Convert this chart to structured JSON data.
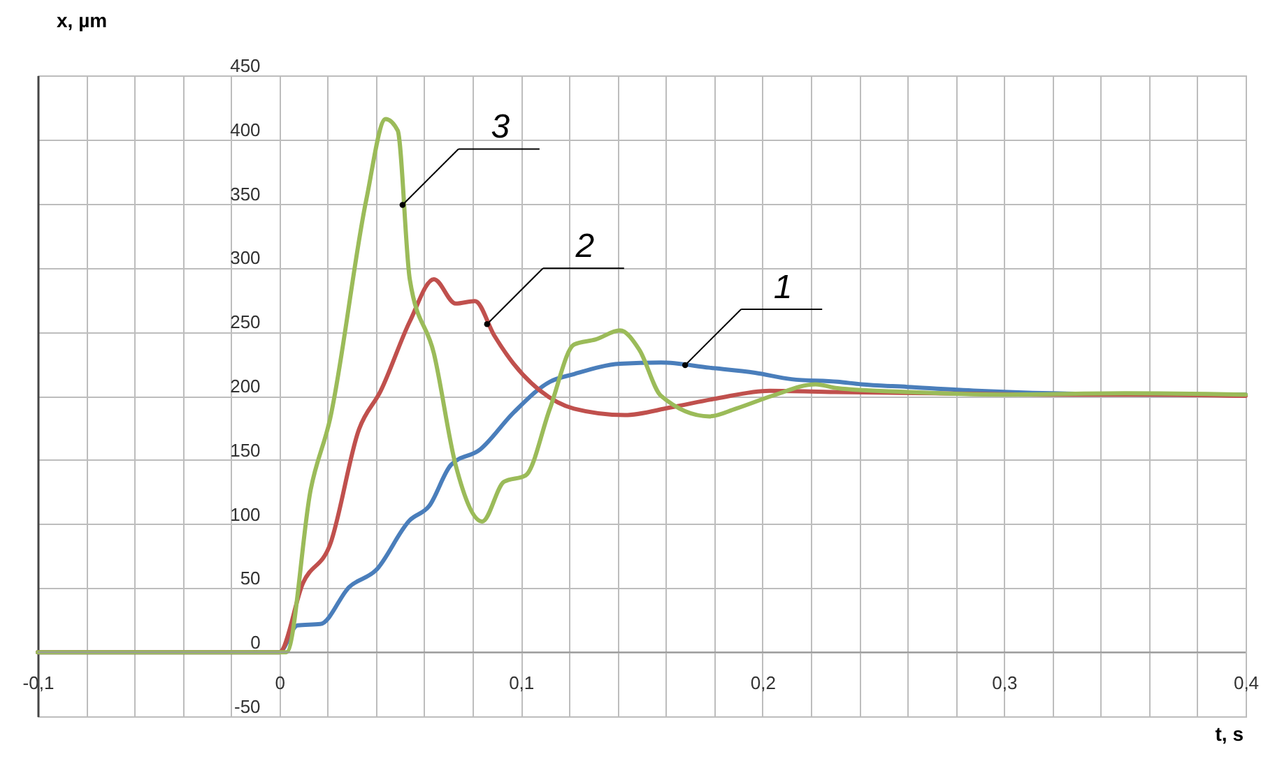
{
  "chart_data": {
    "type": "line",
    "xlabel": "t, s",
    "ylabel": "x, µm",
    "xlim": [
      -0.1,
      0.4
    ],
    "ylim": [
      -50,
      450
    ],
    "xticks": [
      {
        "value": -0.1,
        "label": "-0,1"
      },
      {
        "value": -0.08,
        "label": null
      },
      {
        "value": -0.06,
        "label": null
      },
      {
        "value": -0.04,
        "label": null
      },
      {
        "value": -0.02,
        "label": null
      },
      {
        "value": 0,
        "label": "0"
      },
      {
        "value": 0.02,
        "label": null
      },
      {
        "value": 0.04,
        "label": null
      },
      {
        "value": 0.06,
        "label": null
      },
      {
        "value": 0.08,
        "label": null
      },
      {
        "value": 0.1,
        "label": "0,1"
      },
      {
        "value": 0.12,
        "label": null
      },
      {
        "value": 0.14,
        "label": null
      },
      {
        "value": 0.16,
        "label": null
      },
      {
        "value": 0.18,
        "label": null
      },
      {
        "value": 0.2,
        "label": "0,2"
      },
      {
        "value": 0.22,
        "label": null
      },
      {
        "value": 0.24,
        "label": null
      },
      {
        "value": 0.26,
        "label": null
      },
      {
        "value": 0.28,
        "label": null
      },
      {
        "value": 0.3,
        "label": "0,3"
      },
      {
        "value": 0.32,
        "label": null
      },
      {
        "value": 0.34,
        "label": null
      },
      {
        "value": 0.36,
        "label": null
      },
      {
        "value": 0.38,
        "label": null
      },
      {
        "value": 0.4,
        "label": "0,4"
      }
    ],
    "yticks": [
      -50,
      0,
      50,
      100,
      150,
      200,
      250,
      300,
      350,
      400,
      450
    ],
    "grid": true,
    "marker": "none",
    "line_style": "solid",
    "series": [
      {
        "color": "#4a7ebb",
        "x": [
          -0.1,
          -0.05,
          0,
          0.0075,
          0.017,
          0.029,
          0.04,
          0.054,
          0.062,
          0.071,
          0.083,
          0.097,
          0.112,
          0.122,
          0.141,
          0.158,
          0.178,
          0.197,
          0.212,
          0.231,
          0.241,
          0.26,
          0.289,
          0.32,
          0.36,
          0.4
        ],
        "values": [
          0,
          0,
          0,
          21,
          22,
          51,
          64,
          103,
          114,
          146,
          158,
          187,
          211,
          217,
          225,
          226,
          222,
          218,
          213,
          211,
          209,
          207,
          204,
          202,
          201,
          201
        ]
      },
      {
        "color": "#c0504d",
        "x": [
          -0.1,
          -0.05,
          0,
          0.0098,
          0.021,
          0.033,
          0.042,
          0.054,
          0.064,
          0.073,
          0.081,
          0.089,
          0.097,
          0.108,
          0.122,
          0.143,
          0.162,
          0.181,
          0.203,
          0.23,
          0.27,
          0.32,
          0.36,
          0.4
        ],
        "values": [
          0,
          0,
          0,
          54,
          84,
          174,
          204,
          258,
          291,
          272,
          274,
          247,
          225,
          204,
          190,
          185,
          191,
          198,
          204,
          203,
          202,
          201,
          201,
          200
        ]
      },
      {
        "color": "#9bbb59",
        "x": [
          -0.1,
          -0.05,
          0,
          0.003,
          0.013,
          0.021,
          0.036,
          0.044,
          0.049,
          0.054,
          0.064,
          0.073,
          0.084,
          0.093,
          0.102,
          0.112,
          0.122,
          0.131,
          0.141,
          0.149,
          0.158,
          0.178,
          0.189,
          0.204,
          0.222,
          0.231,
          0.26,
          0.3,
          0.35,
          0.4
        ],
        "values": [
          0,
          0,
          0,
          0,
          127,
          182,
          353,
          416,
          407,
          291,
          233,
          146,
          102,
          133,
          138,
          190,
          240,
          244,
          251,
          236,
          200,
          184,
          190,
          200,
          209,
          206,
          203,
          201,
          202,
          201
        ]
      }
    ],
    "annotations": [
      {
        "text": "1",
        "x": 0.168,
        "y": 224
      },
      {
        "text": "2",
        "x": 0.086,
        "y": 256
      },
      {
        "text": "3",
        "x": 0.051,
        "y": 349
      }
    ]
  }
}
